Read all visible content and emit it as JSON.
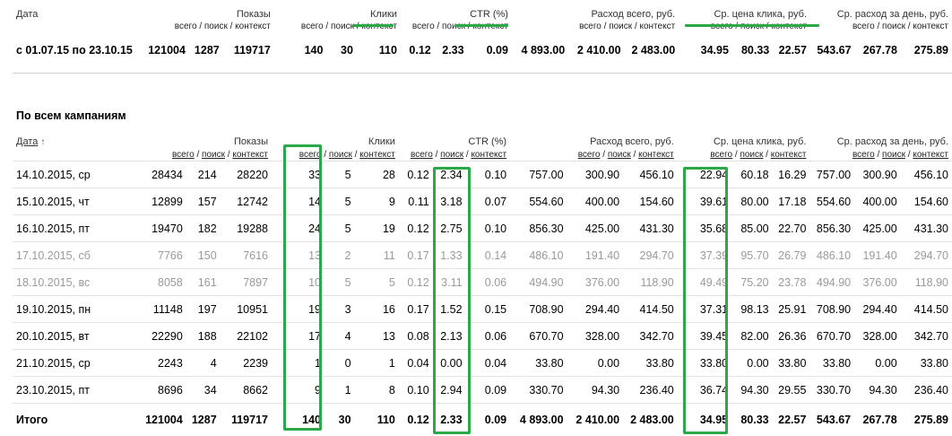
{
  "colors": {
    "highlight": "#2aa84a",
    "muted": "#9a9a9a"
  },
  "top": {
    "headers": {
      "date": "Дата",
      "impressions": "Показы",
      "clicks": "Клики",
      "ctr": "CTR (%)",
      "spend": "Расход всего, руб.",
      "cpc": "Ср. цена клика, руб.",
      "daily": "Ср. расход за день, руб."
    },
    "sub": {
      "all": "всего",
      "search": "поиск",
      "context": "контекст",
      "sep": " / "
    },
    "summary": {
      "period": "с 01.07.15 по 23.10.15",
      "values": [
        "121004",
        "1287",
        "119717",
        "140",
        "30",
        "110",
        "0.12",
        "2.33",
        "0.09",
        "4 893.00",
        "2 410.00",
        "2 483.00",
        "34.95",
        "80.33",
        "22.57",
        "543.67",
        "267.78",
        "275.89"
      ]
    }
  },
  "section": {
    "title": "По всем кампаниям",
    "date_header": "Дата",
    "sort_icon": "↑",
    "rows": [
      {
        "date": "14.10.2015, ср",
        "weekend": false,
        "values": [
          "28434",
          "214",
          "28220",
          "33",
          "5",
          "28",
          "0.12",
          "2.34",
          "0.10",
          "757.00",
          "300.90",
          "456.10",
          "22.94",
          "60.18",
          "16.29",
          "757.00",
          "300.90",
          "456.10"
        ]
      },
      {
        "date": "15.10.2015, чт",
        "weekend": false,
        "values": [
          "12899",
          "157",
          "12742",
          "14",
          "5",
          "9",
          "0.11",
          "3.18",
          "0.07",
          "554.60",
          "400.00",
          "154.60",
          "39.61",
          "80.00",
          "17.18",
          "554.60",
          "400.00",
          "154.60"
        ]
      },
      {
        "date": "16.10.2015, пт",
        "weekend": false,
        "values": [
          "19470",
          "182",
          "19288",
          "24",
          "5",
          "19",
          "0.12",
          "2.75",
          "0.10",
          "856.30",
          "425.00",
          "431.30",
          "35.68",
          "85.00",
          "22.70",
          "856.30",
          "425.00",
          "431.30"
        ]
      },
      {
        "date": "17.10.2015, сб",
        "weekend": true,
        "values": [
          "7766",
          "150",
          "7616",
          "13",
          "2",
          "11",
          "0.17",
          "1.33",
          "0.14",
          "486.10",
          "191.40",
          "294.70",
          "37.39",
          "95.70",
          "26.79",
          "486.10",
          "191.40",
          "294.70"
        ]
      },
      {
        "date": "18.10.2015, вс",
        "weekend": true,
        "values": [
          "8058",
          "161",
          "7897",
          "10",
          "5",
          "5",
          "0.12",
          "3.11",
          "0.06",
          "494.90",
          "376.00",
          "118.90",
          "49.49",
          "75.20",
          "23.78",
          "494.90",
          "376.00",
          "118.90"
        ]
      },
      {
        "date": "19.10.2015, пн",
        "weekend": false,
        "values": [
          "11148",
          "197",
          "10951",
          "19",
          "3",
          "16",
          "0.17",
          "1.52",
          "0.15",
          "708.90",
          "294.40",
          "414.50",
          "37.31",
          "98.13",
          "25.91",
          "708.90",
          "294.40",
          "414.50"
        ]
      },
      {
        "date": "20.10.2015, вт",
        "weekend": false,
        "values": [
          "22290",
          "188",
          "22102",
          "17",
          "4",
          "13",
          "0.08",
          "2.13",
          "0.06",
          "670.70",
          "328.00",
          "342.70",
          "39.45",
          "82.00",
          "26.36",
          "670.70",
          "328.00",
          "342.70"
        ]
      },
      {
        "date": "21.10.2015, ср",
        "weekend": false,
        "values": [
          "2243",
          "4",
          "2239",
          "1",
          "0",
          "1",
          "0.04",
          "0.00",
          "0.04",
          "33.80",
          "0.00",
          "33.80",
          "33.80",
          "0.00",
          "33.80",
          "33.80",
          "0.00",
          "33.80"
        ]
      },
      {
        "date": "23.10.2015, пт",
        "weekend": false,
        "values": [
          "8696",
          "34",
          "8662",
          "9",
          "1",
          "8",
          "0.10",
          "2.94",
          "0.09",
          "330.70",
          "94.30",
          "236.40",
          "36.74",
          "94.30",
          "29.55",
          "330.70",
          "94.30",
          "236.40"
        ]
      }
    ],
    "total": {
      "label": "Итого",
      "values": [
        "121004",
        "1287",
        "119717",
        "140",
        "30",
        "110",
        "0.12",
        "2.33",
        "0.09",
        "4 893.00",
        "2 410.00",
        "2 483.00",
        "34.95",
        "80.33",
        "22.57",
        "543.67",
        "267.78",
        "275.89"
      ]
    }
  }
}
